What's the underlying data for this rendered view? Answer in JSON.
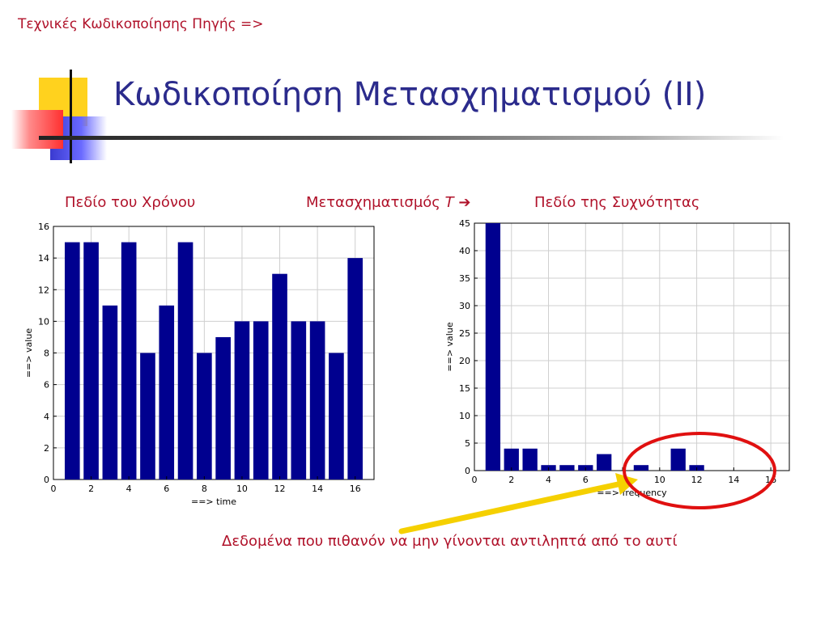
{
  "header": {
    "breadcrumb": "Τεχνικές Κωδικοποίησης Πηγής =>",
    "title": "Κωδικοποίηση Μετασχηματισμού (ΙΙ)"
  },
  "labels": {
    "time_domain": "Πεδίο του Χρόνου",
    "transform": "Μετασχηματισμός",
    "transform_symbol": "T",
    "transform_arrow": "➔",
    "freq_domain": "Πεδίο της Συχνότητας"
  },
  "annotation": {
    "text": "Δεδομένα που πιθανόν να μην γίνονται αντιληπτά από το αυτί",
    "arrow_color": "#f5d000",
    "circle_color": "#e01010"
  },
  "chart_data": [
    {
      "type": "bar",
      "x": [
        1,
        2,
        3,
        4,
        5,
        6,
        7,
        8,
        9,
        10,
        11,
        12,
        13,
        14,
        15,
        16
      ],
      "values": [
        15,
        15,
        11,
        15,
        8,
        11,
        15,
        8,
        9,
        10,
        10,
        13,
        10,
        10,
        8,
        14
      ],
      "xlabel": "==>  time",
      "ylabel": "==>  value",
      "xlim": [
        0,
        17
      ],
      "ylim": [
        0,
        16
      ],
      "xticks": [
        0,
        2,
        4,
        6,
        8,
        10,
        12,
        14,
        16
      ],
      "yticks": [
        0,
        2,
        4,
        6,
        8,
        10,
        12,
        14,
        16
      ],
      "grid": true,
      "bar_color": "#00008f"
    },
    {
      "type": "bar",
      "x": [
        1,
        2,
        3,
        4,
        5,
        6,
        7,
        8,
        9,
        10,
        11,
        12,
        13,
        14,
        15,
        16
      ],
      "values": [
        45,
        4,
        4,
        1,
        1,
        1,
        3,
        0,
        1,
        0,
        4,
        1,
        0,
        0,
        0,
        0
      ],
      "xlabel": "==>  frequency",
      "ylabel": "==>  value",
      "xlim": [
        0,
        17
      ],
      "ylim": [
        0,
        45
      ],
      "xticks": [
        0,
        2,
        4,
        6,
        8,
        10,
        12,
        14,
        16
      ],
      "yticks": [
        0,
        5,
        10,
        15,
        20,
        25,
        30,
        35,
        40,
        45
      ],
      "grid": true,
      "bar_color": "#00008f"
    }
  ]
}
